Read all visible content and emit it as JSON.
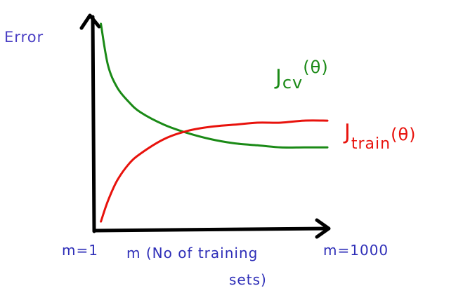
{
  "chart_data": {
    "type": "line",
    "ylabel": "Error",
    "xlabel_line1": "m (No of training",
    "xlabel_line2": "sets)",
    "x_start_label": "m=1",
    "x_end_label": "m=1000",
    "xlim": [
      1,
      1000
    ],
    "grid": false,
    "legend": "inline",
    "series": [
      {
        "name_main": "J",
        "name_sub": "cv",
        "name_arg": "(θ)",
        "color": "#1a8a16",
        "x": [
          30,
          60,
          100,
          150,
          200,
          300,
          400,
          500,
          600,
          700,
          800,
          900,
          1000
        ],
        "y": [
          0.98,
          0.78,
          0.67,
          0.6,
          0.55,
          0.49,
          0.45,
          0.42,
          0.4,
          0.39,
          0.38,
          0.38,
          0.38
        ]
      },
      {
        "name_main": "J",
        "name_sub": "train",
        "name_arg": "(θ)",
        "color": "#e8120c",
        "x": [
          30,
          60,
          100,
          150,
          200,
          300,
          400,
          500,
          600,
          700,
          800,
          900,
          1000
        ],
        "y": [
          0.02,
          0.12,
          0.22,
          0.3,
          0.35,
          0.42,
          0.46,
          0.48,
          0.49,
          0.5,
          0.5,
          0.51,
          0.51
        ]
      }
    ]
  },
  "colors": {
    "axes": "#000000",
    "ylabel": "#4a3fc4",
    "xlabels": "#2f2fb8"
  }
}
